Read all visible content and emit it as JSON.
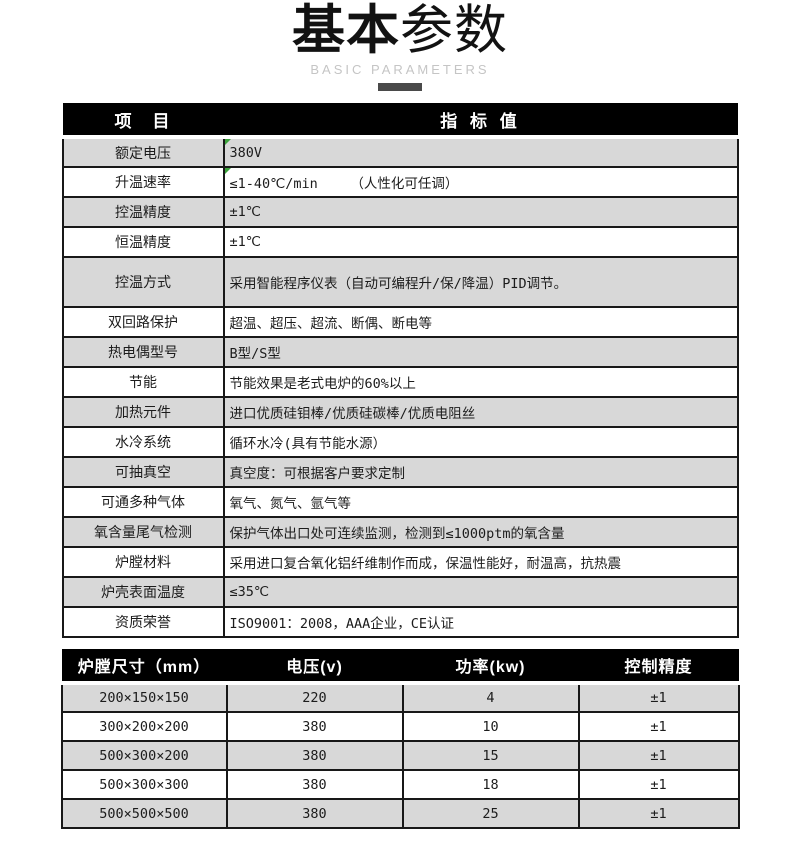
{
  "header": {
    "title_bold": "基本",
    "title_light": "参数",
    "subtitle": "BASIC PARAMETERS"
  },
  "colors": {
    "header_black": "#000000",
    "row_gray": "#d8d8d8",
    "row_white": "#ffffff",
    "border_dark": "#181818",
    "comment_marker_green": "#3ba23b",
    "subtitle_gray": "#c5c5c5",
    "title_bar_gray": "#4a4a4a"
  },
  "spec_table": {
    "col_item": "项　目",
    "col_value": "指 标 值",
    "rows": [
      {
        "label": "额定电压",
        "value": "380V",
        "marker": true
      },
      {
        "label": "升温速率",
        "value": "≤1-40℃/min    （人性化可任调）",
        "marker": true
      },
      {
        "label": "控温精度",
        "value": "±1℃",
        "marker": false
      },
      {
        "label": "恒温精度",
        "value": "±1℃",
        "marker": false
      },
      {
        "label": "控温方式",
        "value": "采用智能程序仪表（自动可编程升/保/降温）PID调节。",
        "marker": false
      },
      {
        "label": "双回路保护",
        "value": "超温、超压、超流、断偶、断电等",
        "marker": false
      },
      {
        "label": "热电偶型号",
        "value": "B型/S型",
        "marker": false
      },
      {
        "label": "节能",
        "value": "节能效果是老式电炉的60%以上",
        "marker": false
      },
      {
        "label": "加热元件",
        "value": "进口优质硅钼棒/优质硅碳棒/优质电阻丝",
        "marker": false
      },
      {
        "label": "水冷系统",
        "value": "循环水冷(具有节能水源）",
        "marker": false
      },
      {
        "label": "可抽真空",
        "value": "真空度：可根据客户要求定制",
        "marker": false
      },
      {
        "label": "可通多种气体",
        "value": "氧气、氮气、氩气等",
        "marker": false
      },
      {
        "label": "氧含量尾气检测",
        "value": "保护气体出口处可连续监测，检测到≤1000ptm的氧含量",
        "marker": false
      },
      {
        "label": "炉膛材料",
        "value": "采用进口复合氧化铝纤维制作而成，保温性能好，耐温高，抗热震",
        "marker": false
      },
      {
        "label": "炉壳表面温度",
        "value": "≤35℃",
        "marker": false
      },
      {
        "label": "资质荣誉",
        "value": "ISO9001：2008，AAA企业，CE认证",
        "marker": false
      }
    ]
  },
  "size_table": {
    "headers": [
      "炉膛尺寸（mm）",
      "电压(v)",
      "功率(kw)",
      "控制精度"
    ],
    "rows": [
      [
        "200×150×150",
        "220",
        "4",
        "±1"
      ],
      [
        "300×200×200",
        "380",
        "10",
        "±1"
      ],
      [
        "500×300×200",
        "380",
        "15",
        "±1"
      ],
      [
        "500×300×300",
        "380",
        "18",
        "±1"
      ],
      [
        "500×500×500",
        "380",
        "25",
        "±1"
      ]
    ]
  }
}
